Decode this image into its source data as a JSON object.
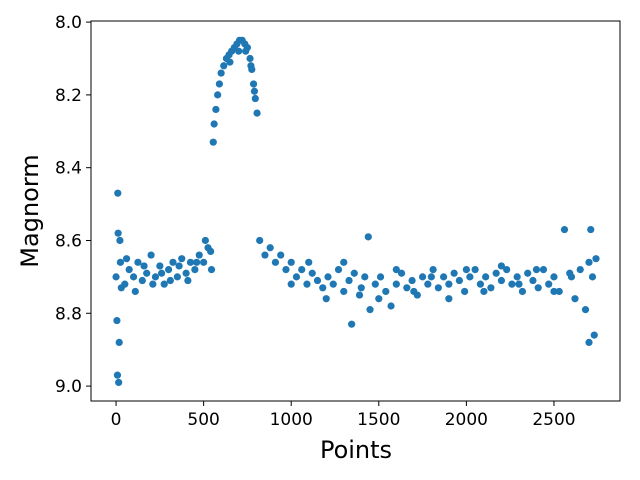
{
  "chart_data": {
    "type": "scatter",
    "xlabel": "Points",
    "ylabel": "Magnorm",
    "color": "#1f77b4",
    "xlim": [
      -143,
      2877
    ],
    "ylim": [
      9.041,
      7.997
    ],
    "xticks": [
      0,
      500,
      1000,
      1500,
      2000,
      2500
    ],
    "yticks": [
      {
        "value": 8,
        "label": "8.0"
      },
      8.2,
      8.4,
      8.6,
      8.8,
      {
        "value": 9,
        "label": "9.0"
      }
    ],
    "x": [
      0,
      25,
      50,
      75,
      100,
      125,
      150,
      175,
      200,
      225,
      250,
      275,
      300,
      325,
      350,
      375,
      400,
      425,
      450,
      475,
      500,
      525,
      545,
      30,
      60,
      110,
      160,
      210,
      260,
      310,
      360,
      410,
      460,
      510,
      540,
      5,
      10,
      12,
      8,
      15,
      18,
      22,
      555,
      560,
      570,
      580,
      590,
      600,
      615,
      630,
      645,
      660,
      675,
      690,
      705,
      720,
      735,
      750,
      765,
      775,
      785,
      795,
      805,
      650,
      700,
      740,
      770,
      790,
      820,
      850,
      880,
      910,
      940,
      970,
      1000,
      1030,
      1060,
      1090,
      1120,
      1150,
      1180,
      1210,
      1240,
      1270,
      1300,
      1330,
      1345,
      1360,
      1390,
      1420,
      1440,
      1450,
      1480,
      1510,
      1540,
      1570,
      1600,
      1630,
      1660,
      1690,
      1720,
      1750,
      1780,
      1810,
      1840,
      1870,
      1900,
      1930,
      1960,
      1990,
      2020,
      2050,
      2080,
      2110,
      2140,
      2170,
      2200,
      2230,
      2260,
      2290,
      2320,
      2350,
      2380,
      2410,
      2440,
      2470,
      2500,
      2530,
      2560,
      2590,
      2620,
      2650,
      2680,
      2700,
      2710,
      2720,
      2730,
      2740,
      1000,
      1100,
      1200,
      1300,
      1400,
      1500,
      1600,
      1700,
      1800,
      1900,
      2000,
      2100,
      2200,
      2300,
      2400,
      2500,
      2600,
      2700
    ],
    "values": [
      8.7,
      8.66,
      8.72,
      8.68,
      8.7,
      8.66,
      8.71,
      8.69,
      8.64,
      8.7,
      8.67,
      8.72,
      8.68,
      8.66,
      8.7,
      8.65,
      8.69,
      8.66,
      8.68,
      8.64,
      8.66,
      8.62,
      8.68,
      8.73,
      8.65,
      8.74,
      8.67,
      8.72,
      8.69,
      8.71,
      8.67,
      8.71,
      8.66,
      8.6,
      8.63,
      8.82,
      8.47,
      8.58,
      8.97,
      8.99,
      8.88,
      8.6,
      8.33,
      8.28,
      8.24,
      8.2,
      8.17,
      8.14,
      8.12,
      8.1,
      8.09,
      8.08,
      8.07,
      8.06,
      8.05,
      8.05,
      8.06,
      8.07,
      8.1,
      8.13,
      8.17,
      8.21,
      8.25,
      8.11,
      8.08,
      8.08,
      8.12,
      8.19,
      8.6,
      8.64,
      8.62,
      8.66,
      8.64,
      8.68,
      8.66,
      8.7,
      8.68,
      8.72,
      8.69,
      8.71,
      8.73,
      8.7,
      8.72,
      8.68,
      8.74,
      8.71,
      8.83,
      8.69,
      8.75,
      8.7,
      8.59,
      8.79,
      8.72,
      8.7,
      8.74,
      8.78,
      8.72,
      8.69,
      8.73,
      8.71,
      8.75,
      8.7,
      8.72,
      8.68,
      8.73,
      8.7,
      8.72,
      8.69,
      8.71,
      8.74,
      8.7,
      8.68,
      8.72,
      8.7,
      8.73,
      8.69,
      8.71,
      8.68,
      8.72,
      8.7,
      8.74,
      8.69,
      8.71,
      8.73,
      8.68,
      8.72,
      8.7,
      8.74,
      8.57,
      8.69,
      8.76,
      8.68,
      8.79,
      8.88,
      8.57,
      8.7,
      8.86,
      8.65,
      8.72,
      8.66,
      8.76,
      8.66,
      8.73,
      8.76,
      8.68,
      8.74,
      8.7,
      8.76,
      8.68,
      8.74,
      8.67,
      8.72,
      8.68,
      8.74,
      8.7,
      8.66
    ]
  }
}
